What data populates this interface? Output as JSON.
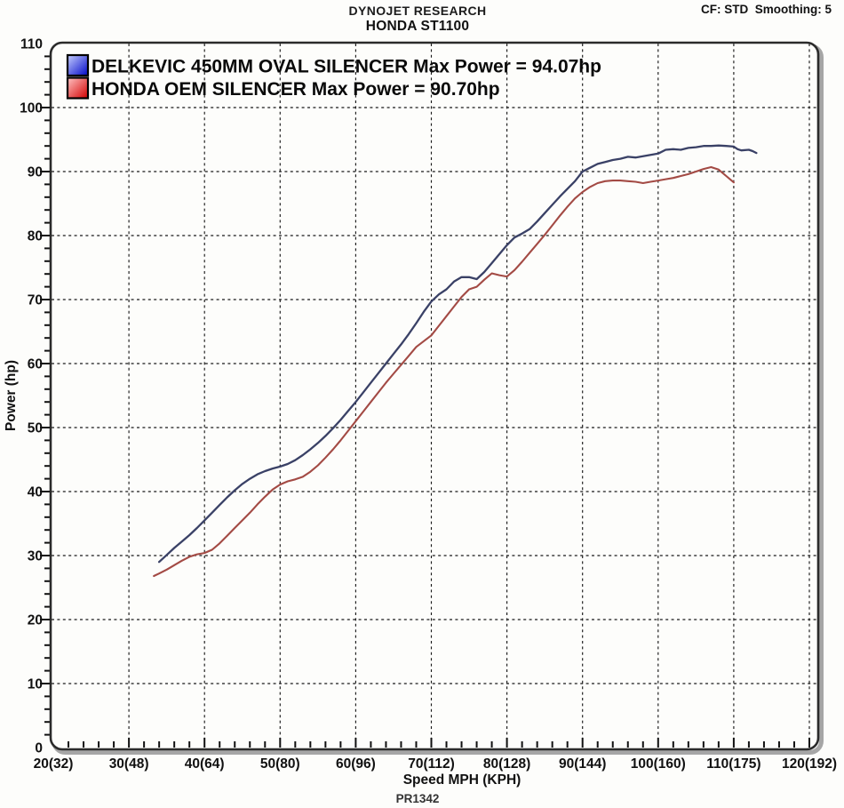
{
  "header": {
    "title_line1": "DYNOJET RESEARCH",
    "title_line2": "HONDA ST1100",
    "top_right": "CF: STD  Smoothing: 5"
  },
  "footer": {
    "run_code": "PR1342"
  },
  "colors": {
    "grid": "#1a1a1a",
    "border": "#2b2b2b",
    "border_shadow": "#a6a6a6",
    "text": "#111111",
    "background": "#fdfdfb"
  },
  "chart_data": {
    "type": "line",
    "title": "DYNOJET RESEARCH / HONDA ST1100",
    "xlabel": "Speed MPH (KPH)",
    "ylabel": "Power (hp)",
    "xlim": [
      20,
      120
    ],
    "ylim": [
      0,
      110
    ],
    "grid": "dashed, at every major tick (10 mph / 10 hp)",
    "x_minor_step": 2,
    "y_minor_step": 2,
    "x_major_ticks": [
      20,
      30,
      40,
      50,
      60,
      70,
      80,
      90,
      100,
      110,
      120
    ],
    "x_tick_labels": [
      "20(32)",
      "30(48)",
      "40(64)",
      "50(80)",
      "60(96)",
      "70(112)",
      "80(128)",
      "90(144)",
      "100(160)",
      "110(175)",
      "120(192)"
    ],
    "y_major_ticks": [
      0,
      10,
      20,
      30,
      40,
      50,
      60,
      70,
      80,
      90,
      100,
      110
    ],
    "legend_position": "top-left inside plot",
    "series": [
      {
        "name": "DELKEVIC 450MM OVAL SILENCER",
        "legend_label": "DELKEVIC 450MM OVAL SILENCER Max Power = 94.07hp",
        "max_power_hp": 94.07,
        "color": "#3a4166",
        "swatch_gradient": [
          "#c7d0ff",
          "#0006c8"
        ],
        "points": [
          [
            34,
            29.0
          ],
          [
            35,
            30.1
          ],
          [
            36,
            31.2
          ],
          [
            37,
            32.2
          ],
          [
            38,
            33.2
          ],
          [
            39,
            34.3
          ],
          [
            40,
            35.5
          ],
          [
            41,
            36.7
          ],
          [
            42,
            37.9
          ],
          [
            43,
            39.1
          ],
          [
            44,
            40.2
          ],
          [
            45,
            41.2
          ],
          [
            46,
            42.0
          ],
          [
            47,
            42.7
          ],
          [
            48,
            43.2
          ],
          [
            49,
            43.6
          ],
          [
            50,
            43.9
          ],
          [
            51,
            44.3
          ],
          [
            52,
            44.9
          ],
          [
            53,
            45.7
          ],
          [
            54,
            46.6
          ],
          [
            55,
            47.6
          ],
          [
            56,
            48.7
          ],
          [
            57,
            49.9
          ],
          [
            58,
            51.2
          ],
          [
            59,
            52.6
          ],
          [
            60,
            54.0
          ],
          [
            61,
            55.5
          ],
          [
            62,
            57.0
          ],
          [
            63,
            58.5
          ],
          [
            64,
            60.0
          ],
          [
            65,
            61.5
          ],
          [
            66,
            63.0
          ],
          [
            67,
            64.6
          ],
          [
            68,
            66.3
          ],
          [
            69,
            68.1
          ],
          [
            70,
            69.7
          ],
          [
            71,
            70.8
          ],
          [
            72,
            71.6
          ],
          [
            73,
            72.8
          ],
          [
            74,
            73.5
          ],
          [
            75,
            73.5
          ],
          [
            76,
            73.2
          ],
          [
            77,
            74.3
          ],
          [
            78,
            75.7
          ],
          [
            79,
            77.1
          ],
          [
            80,
            78.5
          ],
          [
            81,
            79.7
          ],
          [
            82,
            80.3
          ],
          [
            83,
            81.0
          ],
          [
            84,
            82.2
          ],
          [
            85,
            83.5
          ],
          [
            86,
            84.8
          ],
          [
            87,
            86.1
          ],
          [
            88,
            87.3
          ],
          [
            89,
            88.5
          ],
          [
            90,
            90.0
          ],
          [
            91,
            90.6
          ],
          [
            92,
            91.2
          ],
          [
            93,
            91.5
          ],
          [
            94,
            91.8
          ],
          [
            95,
            92.0
          ],
          [
            96,
            92.3
          ],
          [
            97,
            92.2
          ],
          [
            98,
            92.4
          ],
          [
            99,
            92.6
          ],
          [
            100,
            92.8
          ],
          [
            101,
            93.4
          ],
          [
            102,
            93.5
          ],
          [
            103,
            93.4
          ],
          [
            104,
            93.7
          ],
          [
            105,
            93.8
          ],
          [
            106,
            94.0
          ],
          [
            107,
            94.0
          ],
          [
            108,
            94.07
          ],
          [
            109,
            94.0
          ],
          [
            110,
            93.9
          ],
          [
            110.5,
            93.5
          ],
          [
            111,
            93.3
          ],
          [
            112,
            93.4
          ],
          [
            112.5,
            93.2
          ],
          [
            113,
            92.9
          ]
        ]
      },
      {
        "name": "HONDA OEM SILENCER",
        "legend_label": "HONDA OEM SILENCER Max Power = 90.70hp",
        "max_power_hp": 90.7,
        "color": "#a34a44",
        "swatch_gradient": [
          "#ffc4c4",
          "#d40000"
        ],
        "points": [
          [
            33.3,
            26.8
          ],
          [
            34,
            27.2
          ],
          [
            35,
            27.8
          ],
          [
            36,
            28.5
          ],
          [
            37,
            29.2
          ],
          [
            38,
            29.8
          ],
          [
            39,
            30.2
          ],
          [
            40,
            30.4
          ],
          [
            41,
            30.9
          ],
          [
            42,
            31.9
          ],
          [
            43,
            33.1
          ],
          [
            44,
            34.3
          ],
          [
            45,
            35.5
          ],
          [
            46,
            36.7
          ],
          [
            47,
            38.0
          ],
          [
            48,
            39.2
          ],
          [
            49,
            40.3
          ],
          [
            50,
            41.1
          ],
          [
            51,
            41.6
          ],
          [
            52,
            41.9
          ],
          [
            53,
            42.3
          ],
          [
            54,
            43.1
          ],
          [
            55,
            44.1
          ],
          [
            56,
            45.3
          ],
          [
            57,
            46.6
          ],
          [
            58,
            48.0
          ],
          [
            59,
            49.5
          ],
          [
            60,
            51.0
          ],
          [
            61,
            52.5
          ],
          [
            62,
            54.0
          ],
          [
            63,
            55.5
          ],
          [
            64,
            57.0
          ],
          [
            65,
            58.4
          ],
          [
            66,
            59.8
          ],
          [
            67,
            61.2
          ],
          [
            68,
            62.6
          ],
          [
            69,
            63.5
          ],
          [
            70,
            64.4
          ],
          [
            71,
            65.9
          ],
          [
            72,
            67.4
          ],
          [
            73,
            68.9
          ],
          [
            74,
            70.4
          ],
          [
            75,
            71.6
          ],
          [
            76,
            72.0
          ],
          [
            77,
            73.1
          ],
          [
            78,
            74.1
          ],
          [
            79,
            73.8
          ],
          [
            80,
            73.6
          ],
          [
            81,
            74.6
          ],
          [
            82,
            75.9
          ],
          [
            83,
            77.3
          ],
          [
            84,
            78.7
          ],
          [
            85,
            80.1
          ],
          [
            86,
            81.6
          ],
          [
            87,
            83.1
          ],
          [
            88,
            84.5
          ],
          [
            89,
            85.8
          ],
          [
            90,
            86.8
          ],
          [
            91,
            87.6
          ],
          [
            92,
            88.2
          ],
          [
            93,
            88.5
          ],
          [
            94,
            88.6
          ],
          [
            95,
            88.6
          ],
          [
            96,
            88.5
          ],
          [
            97,
            88.4
          ],
          [
            98,
            88.2
          ],
          [
            99,
            88.4
          ],
          [
            100,
            88.6
          ],
          [
            101,
            88.8
          ],
          [
            102,
            89.0
          ],
          [
            103,
            89.3
          ],
          [
            104,
            89.6
          ],
          [
            105,
            90.0
          ],
          [
            106,
            90.4
          ],
          [
            107,
            90.7
          ],
          [
            108,
            90.3
          ],
          [
            109,
            89.3
          ],
          [
            110,
            88.3
          ]
        ]
      }
    ]
  }
}
